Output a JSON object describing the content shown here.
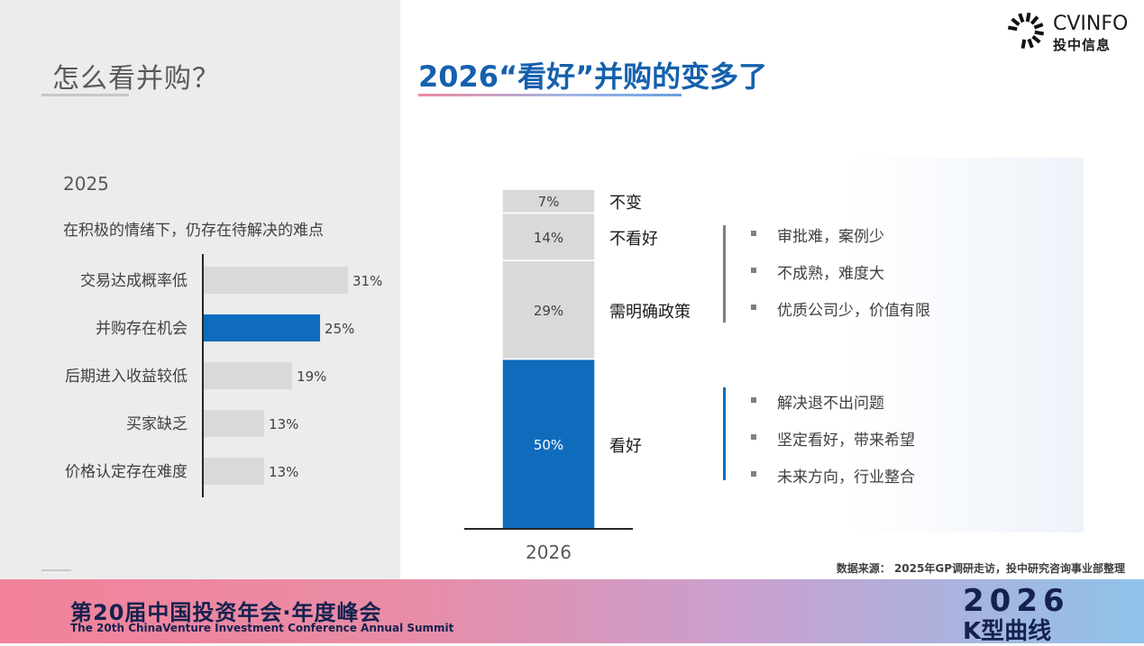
{
  "left": {
    "title": "怎么看并购？",
    "year": "2025",
    "subtitle": "在积极的情绪下，仍存在待解决的难点"
  },
  "right": {
    "title": "2026“看好”并购的变多了"
  },
  "logo": {
    "brand": "CVINFO",
    "brand_cn": "投中信息"
  },
  "bullets_group_a": [
    "审批难，案例少",
    "不成熟，难度大",
    "优质公司少，价值有限"
  ],
  "bullets_group_b": [
    "解决退不出问题",
    "坚定看好，带来希望",
    "未来方向，行业整合"
  ],
  "source": "数据来源：  2025年GP调研走访，投中研究咨询事业部整理",
  "footer": {
    "title_cn": "第20届中国投资年会·年度峰会",
    "title_en": "The 20th ChinaVenture Investment Conference Annual Summit",
    "year": "2026",
    "slogan": "K型曲线"
  },
  "colors": {
    "accent_blue": "#0f6cbd",
    "bar_gray": "#d9d9d9",
    "title_blue": "#1560ad"
  },
  "chart_data": [
    {
      "type": "bar",
      "orientation": "horizontal",
      "categories": [
        "交易达成概率低",
        "并购存在机会",
        "后期进入收益较低",
        "买家缺乏",
        "价格认定存在难度"
      ],
      "values": [
        31,
        25,
        19,
        13,
        13
      ],
      "value_labels": [
        "31%",
        "25%",
        "19%",
        "13%",
        "13%"
      ],
      "highlight": "并购存在机会",
      "unit": "%",
      "xlim": [
        0,
        31
      ]
    },
    {
      "type": "bar",
      "stacked": true,
      "categories": [
        "2026"
      ],
      "series": [
        {
          "name": "看好",
          "values": [
            50
          ],
          "label": "50%"
        },
        {
          "name": "需明确政策",
          "values": [
            29
          ],
          "label": "29%"
        },
        {
          "name": "不看好",
          "values": [
            14
          ],
          "label": "14%"
        },
        {
          "name": "不变",
          "values": [
            7
          ],
          "label": "7%"
        }
      ],
      "unit": "%",
      "ylim": [
        0,
        100
      ]
    }
  ]
}
